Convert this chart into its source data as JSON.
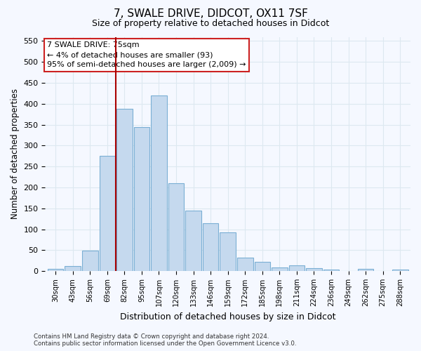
{
  "title1": "7, SWALE DRIVE, DIDCOT, OX11 7SF",
  "title2": "Size of property relative to detached houses in Didcot",
  "xlabel": "Distribution of detached houses by size in Didcot",
  "ylabel": "Number of detached properties",
  "categories": [
    "30sqm",
    "43sqm",
    "56sqm",
    "69sqm",
    "82sqm",
    "95sqm",
    "107sqm",
    "120sqm",
    "133sqm",
    "146sqm",
    "159sqm",
    "172sqm",
    "185sqm",
    "198sqm",
    "211sqm",
    "224sqm",
    "236sqm",
    "249sqm",
    "262sqm",
    "275sqm",
    "288sqm"
  ],
  "values": [
    5,
    12,
    48,
    275,
    388,
    345,
    420,
    210,
    145,
    115,
    92,
    32,
    22,
    8,
    13,
    7,
    3,
    0,
    5,
    0,
    3
  ],
  "bar_color": "#c5d9ee",
  "bar_edge_color": "#7aafd4",
  "vline_color": "#aa0000",
  "annotation_title": "7 SWALE DRIVE: 75sqm",
  "annotation_line1": "← 4% of detached houses are smaller (93)",
  "annotation_line2": "95% of semi-detached houses are larger (2,009) →",
  "annotation_box_color": "#ffffff",
  "annotation_box_edge_color": "#cc2222",
  "ylim": [
    0,
    560
  ],
  "yticks": [
    0,
    50,
    100,
    150,
    200,
    250,
    300,
    350,
    400,
    450,
    500,
    550
  ],
  "footer1": "Contains HM Land Registry data © Crown copyright and database right 2024.",
  "footer2": "Contains public sector information licensed under the Open Government Licence v3.0.",
  "bg_color": "#f5f8ff",
  "plot_bg_color": "#f5f8ff",
  "grid_color": "#dde8f0"
}
